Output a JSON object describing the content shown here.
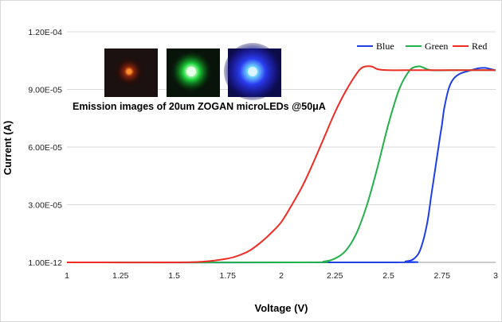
{
  "chart_data": {
    "type": "line",
    "title": "",
    "xlabel": "Voltage (V)",
    "ylabel": "Current (A)",
    "xlim": [
      1,
      3
    ],
    "ylim": [
      0,
      0.00012
    ],
    "x_ticks": [
      "1",
      "1.25",
      "1.5",
      "1.75",
      "2",
      "2.25",
      "2.5",
      "2.75",
      "3"
    ],
    "y_ticks": [
      "1.00E-12",
      "3.00E-05",
      "6.00E-05",
      "9.00E-05",
      "1.20E-04"
    ],
    "grid": "horizontal",
    "legend_position": "top-right",
    "series": [
      {
        "name": "Blue",
        "color": "#1f3ee6",
        "x": [
          1.0,
          2.5,
          2.58,
          2.62,
          2.65,
          2.68,
          2.7,
          2.72,
          2.74,
          2.75,
          2.76,
          2.78,
          2.8,
          2.83,
          2.87,
          2.92,
          2.95,
          2.98,
          3.0
        ],
        "y": [
          0,
          0,
          5e-07,
          2e-06,
          7e-06,
          2e-05,
          3.5e-05,
          5e-05,
          6.5e-05,
          7.2e-05,
          8e-05,
          9e-05,
          9.5e-05,
          9.8e-05,
          9.95e-05,
          0.000101,
          0.0001012,
          0.0001005,
          0.0001
        ]
      },
      {
        "name": "Green",
        "color": "#22b04b",
        "x": [
          1.0,
          2.1,
          2.2,
          2.25,
          2.3,
          2.35,
          2.4,
          2.45,
          2.5,
          2.55,
          2.6,
          2.64,
          2.66,
          2.7,
          2.8,
          3.0
        ],
        "y": [
          0,
          0,
          5e-07,
          2e-06,
          6e-06,
          1.5e-05,
          3e-05,
          5e-05,
          7.2e-05,
          9e-05,
          0.0001,
          0.000102,
          0.0001015,
          0.0001,
          0.0001,
          0.0001
        ]
      },
      {
        "name": "Red",
        "color": "#ee2b24",
        "x": [
          1.0,
          1.5,
          1.65,
          1.75,
          1.8,
          1.85,
          1.9,
          1.95,
          2.0,
          2.05,
          2.1,
          2.15,
          2.2,
          2.25,
          2.3,
          2.35,
          2.38,
          2.42,
          2.45,
          2.5,
          2.6,
          3.0
        ],
        "y": [
          0,
          0,
          5e-07,
          2e-06,
          3.5e-06,
          6e-06,
          1e-05,
          1.5e-05,
          2.1e-05,
          3e-05,
          4e-05,
          5.2e-05,
          6.5e-05,
          7.8e-05,
          8.9e-05,
          9.8e-05,
          0.0001015,
          0.000102,
          0.0001005,
          0.0001,
          0.0001,
          0.0001
        ]
      }
    ]
  },
  "inset": {
    "caption": "Emission images of 20um ZOGAN microLEDs @50μA",
    "images": [
      {
        "name": "red-emission-image",
        "color": "#ff8a2a",
        "glow": "#c22a0a"
      },
      {
        "name": "green-emission-image",
        "color": "#e8ffe8",
        "glow": "#19d23a"
      },
      {
        "name": "blue-emission-image",
        "color": "#dcf6ff",
        "glow": "#2a3cf0"
      }
    ]
  }
}
